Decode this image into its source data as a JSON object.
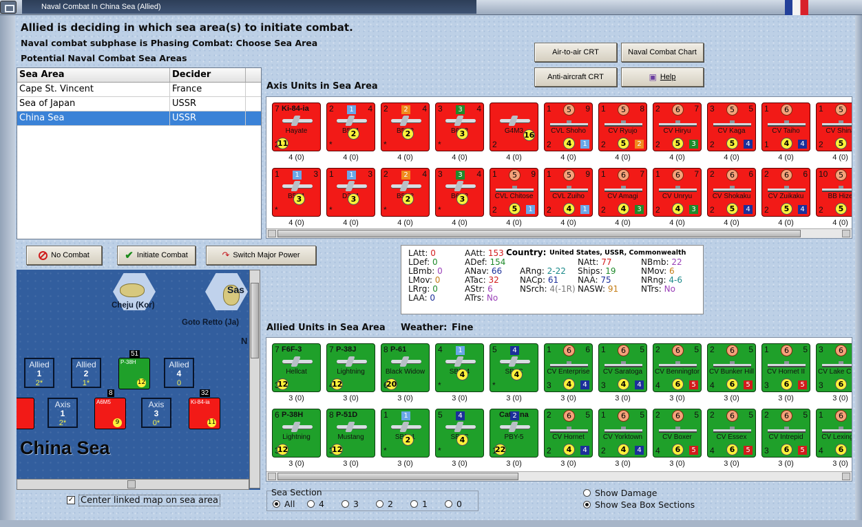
{
  "window": {
    "title": "Naval Combat In China Sea (Allied)"
  },
  "header": {
    "line1": "Allied is deciding in which sea area(s) to initiate combat.",
    "line2": "Naval combat subphase is Phasing Combat: Choose Sea Area",
    "line3": "Potential Naval Combat Sea Areas"
  },
  "sea_table": {
    "headers": [
      "Sea Area",
      "Decider"
    ],
    "rows": [
      {
        "area": "Cape St. Vincent",
        "decider": "France"
      },
      {
        "area": "Sea of Japan",
        "decider": "USSR"
      },
      {
        "area": "China Sea",
        "decider": "USSR"
      }
    ],
    "selected_index": 2
  },
  "chart_buttons": {
    "air_to_air": "Air-to-air CRT",
    "naval_chart": "Naval Combat Chart",
    "anti_aircraft": "Anti-aircraft CRT",
    "help": "Help"
  },
  "action_buttons": {
    "no_combat": "No Combat",
    "initiate": "Initiate Combat",
    "switch": "Switch Major Power"
  },
  "axis_panel": {
    "label": "Axis Units in Sea Area",
    "row1": [
      {
        "type": "plane",
        "top_left": "7",
        "top_right": "",
        "title": "Ki-84-ia",
        "name": "Hayate",
        "bl": "2",
        "val": "11",
        "sq": "",
        "sqc": "",
        "cap": "4 (0)"
      },
      {
        "type": "plane",
        "top_left": "2",
        "top_right": "4",
        "title": "",
        "name": "B5N1",
        "bl": "*",
        "val": "2",
        "sq": "1",
        "sqc": "#6aa7e8",
        "cap": "4 (0)"
      },
      {
        "type": "plane",
        "top_left": "2",
        "top_right": "4",
        "title": "",
        "name": "B5N2",
        "bl": "*",
        "val": "2",
        "sq": "2",
        "sqc": "#f08a1e",
        "cap": "4 (0)"
      },
      {
        "type": "plane",
        "top_left": "3",
        "top_right": "4",
        "title": "",
        "name": "B6N2",
        "bl": "*",
        "val": "3",
        "sq": "3",
        "sqc": "#1e8a2a",
        "cap": "4 (0)"
      },
      {
        "type": "plane",
        "top_left": "",
        "top_right": "",
        "title": "",
        "name": "G4M3",
        "bl": "2",
        "val": "16",
        "sq": "",
        "sqc": "",
        "cap": "4 (0)"
      },
      {
        "type": "ship",
        "top_left": "1",
        "top_right": "9",
        "title": "",
        "name": "CVL Shoho",
        "bl": "2",
        "val": "4",
        "circ": "5",
        "sq": "1",
        "sqc": "#6aa7e8",
        "cap": "4 (0)"
      },
      {
        "type": "ship",
        "top_left": "1",
        "top_right": "8",
        "title": "",
        "name": "CV Ryujo",
        "bl": "2",
        "val": "5",
        "circ": "5",
        "sq": "2",
        "sqc": "#f08a1e",
        "cap": "4 (0)"
      },
      {
        "type": "ship",
        "top_left": "2",
        "top_right": "7",
        "title": "",
        "name": "CV Hiryu",
        "bl": "2",
        "val": "5",
        "circ": "6",
        "sq": "3",
        "sqc": "#1e8a2a",
        "cap": "4 (0)"
      },
      {
        "type": "ship",
        "top_left": "3",
        "top_right": "5",
        "title": "",
        "name": "CV Kaga",
        "bl": "2",
        "val": "5",
        "circ": "5",
        "sq": "4",
        "sqc": "#1b2f9a",
        "cap": "4 (0)"
      },
      {
        "type": "ship",
        "top_left": "1",
        "top_right": "",
        "title": "",
        "name": "CV Taiho",
        "bl": "1",
        "val": "4",
        "circ": "6",
        "sq": "4",
        "sqc": "#1b2f9a",
        "cap": "4 (0)"
      },
      {
        "type": "ship",
        "top_left": "1",
        "top_right": "",
        "title": "",
        "name": "CV Shina",
        "bl": "2",
        "val": "5",
        "circ": "5",
        "sq": "",
        "sqc": "",
        "cap": "4 (0)"
      }
    ],
    "row2": [
      {
        "type": "plane",
        "top_left": "1",
        "top_right": "3",
        "title": "",
        "name": "B5N1",
        "bl": "*",
        "val": "3",
        "sq": "1",
        "sqc": "#6aa7e8",
        "cap": "4 (0)"
      },
      {
        "type": "plane",
        "top_left": "1",
        "top_right": "3",
        "title": "",
        "name": "D3A1",
        "bl": "*",
        "val": "3",
        "sq": "1",
        "sqc": "#6aa7e8",
        "cap": "4 (0)"
      },
      {
        "type": "plane",
        "top_left": "2",
        "top_right": "4",
        "title": "",
        "name": "B5N2",
        "bl": "*",
        "val": "2",
        "sq": "2",
        "sqc": "#f08a1e",
        "cap": "4 (0)"
      },
      {
        "type": "plane",
        "top_left": "3",
        "top_right": "4",
        "title": "",
        "name": "B6N2",
        "bl": "*",
        "val": "3",
        "sq": "3",
        "sqc": "#1e8a2a",
        "cap": "4 (0)"
      },
      {
        "type": "ship",
        "top_left": "1",
        "top_right": "9",
        "title": "",
        "name": "CVL Chitose",
        "bl": "2",
        "val": "5",
        "circ": "5",
        "sq": "1",
        "sqc": "#6aa7e8",
        "cap": "4 (0)"
      },
      {
        "type": "ship",
        "top_left": "1",
        "top_right": "9",
        "title": "",
        "name": "CVL Zuiho",
        "bl": "2",
        "val": "4",
        "circ": "5",
        "sq": "1",
        "sqc": "#6aa7e8",
        "cap": "4 (0)"
      },
      {
        "type": "ship",
        "top_left": "1",
        "top_right": "7",
        "title": "",
        "name": "CV Amagi",
        "bl": "2",
        "val": "4",
        "circ": "6",
        "sq": "3",
        "sqc": "#1e8a2a",
        "cap": "4 (0)"
      },
      {
        "type": "ship",
        "top_left": "1",
        "top_right": "7",
        "title": "",
        "name": "CV Unryu",
        "bl": "2",
        "val": "4",
        "circ": "6",
        "sq": "3",
        "sqc": "#1e8a2a",
        "cap": "4 (0)"
      },
      {
        "type": "ship",
        "top_left": "2",
        "top_right": "6",
        "title": "",
        "name": "CV Shokaku",
        "bl": "2",
        "val": "5",
        "circ": "6",
        "sq": "4",
        "sqc": "#1b2f9a",
        "cap": "4 (0)"
      },
      {
        "type": "ship",
        "top_left": "2",
        "top_right": "6",
        "title": "",
        "name": "CV Zuikaku",
        "bl": "2",
        "val": "5",
        "circ": "6",
        "sq": "4",
        "sqc": "#1b2f9a",
        "cap": "4 (0)"
      },
      {
        "type": "ship",
        "top_left": "10",
        "top_right": "",
        "title": "",
        "name": "BB Hize",
        "bl": "2",
        "val": "5",
        "circ": "5",
        "sq": "",
        "sqc": "",
        "cap": "4 (0)"
      }
    ]
  },
  "allied_panel": {
    "label": "Allied Units in Sea Area",
    "weather_label": "Weather:",
    "weather": "Fine",
    "row1": [
      {
        "type": "plane",
        "top_left": "7",
        "top_right": "",
        "title": "F6F-3",
        "name": "Hellcat",
        "bl": "3",
        "val": "12",
        "sq": "",
        "sqc": "",
        "cap": "3 (0)"
      },
      {
        "type": "plane",
        "top_left": "7",
        "top_right": "",
        "title": "P-38J",
        "name": "Lightning",
        "bl": "4",
        "val": "12",
        "sq": "",
        "sqc": "",
        "cap": "3 (0)"
      },
      {
        "type": "plane",
        "top_left": "8",
        "top_right": "",
        "title": "P-61",
        "name": "Black Widow",
        "bl": "6",
        "val": "20",
        "sq": "",
        "sqc": "",
        "cap": "3 (0)"
      },
      {
        "type": "plane",
        "top_left": "4",
        "top_right": "",
        "title": "",
        "name": "SBD-4",
        "bl": "*",
        "val": "4",
        "sq": "1",
        "sqc": "#6aa7e8",
        "cap": "3 (0)"
      },
      {
        "type": "plane",
        "top_left": "5",
        "top_right": "",
        "title": "",
        "name": "SB2C",
        "bl": "*",
        "val": "4",
        "sq": "4",
        "sqc": "#1b2f9a",
        "cap": "3 (0)"
      },
      {
        "type": "ship",
        "top_left": "1",
        "top_right": "6",
        "title": "",
        "name": "CV Enterprise",
        "bl": "3",
        "val": "4",
        "circ": "6",
        "sq": "4",
        "sqc": "#1b2f9a",
        "cap": "3 (0)"
      },
      {
        "type": "ship",
        "top_left": "1",
        "top_right": "5",
        "title": "",
        "name": "CV Saratoga",
        "bl": "3",
        "val": "4",
        "circ": "6",
        "sq": "4",
        "sqc": "#1b2f9a",
        "cap": "3 (0)"
      },
      {
        "type": "ship",
        "top_left": "2",
        "top_right": "5",
        "title": "",
        "name": "CV Bennington",
        "bl": "4",
        "val": "6",
        "circ": "6",
        "sq": "5",
        "sqc": "#d21b1b",
        "cap": "3 (0)"
      },
      {
        "type": "ship",
        "top_left": "2",
        "top_right": "5",
        "title": "",
        "name": "CV Bunker Hill",
        "bl": "4",
        "val": "6",
        "circ": "6",
        "sq": "5",
        "sqc": "#d21b1b",
        "cap": "3 (0)"
      },
      {
        "type": "ship",
        "top_left": "1",
        "top_right": "5",
        "title": "",
        "name": "CV Hornet II",
        "bl": "3",
        "val": "6",
        "circ": "6",
        "sq": "5",
        "sqc": "#d21b1b",
        "cap": "3 (0)"
      },
      {
        "type": "ship",
        "top_left": "3",
        "top_right": "",
        "title": "",
        "name": "CV Lake Champlain",
        "bl": "3",
        "val": "6",
        "circ": "6",
        "sq": "",
        "sqc": "",
        "cap": "3 (0)"
      }
    ],
    "row2": [
      {
        "type": "plane",
        "top_left": "6",
        "top_right": "",
        "title": "P-38H",
        "name": "Lightning",
        "bl": "3",
        "val": "12",
        "sq": "",
        "sqc": "",
        "cap": "3 (0)"
      },
      {
        "type": "plane",
        "top_left": "8",
        "top_right": "",
        "title": "P-51D",
        "name": "Mustang",
        "bl": "3",
        "val": "12",
        "sq": "",
        "sqc": "",
        "cap": "3 (0)"
      },
      {
        "type": "plane",
        "top_left": "1",
        "top_right": "",
        "title": "",
        "name": "SBD-1",
        "bl": "*",
        "val": "2",
        "sq": "1",
        "sqc": "#6aa7e8",
        "cap": "3 (0)"
      },
      {
        "type": "plane",
        "top_left": "5",
        "top_right": "",
        "title": "",
        "name": "SB2C",
        "bl": "*",
        "val": "4",
        "sq": "4",
        "sqc": "#1b2f9a",
        "cap": "3 (0)"
      },
      {
        "type": "plane",
        "top_left": "",
        "top_right": "",
        "title": "Catalina",
        "name": "PBY-5",
        "bl": "1",
        "val": "22",
        "sq": "2",
        "sqc": "#1b2f9a",
        "cap": "3 (0)"
      },
      {
        "type": "ship",
        "top_left": "2",
        "top_right": "5",
        "title": "",
        "name": "CV Hornet",
        "bl": "2",
        "val": "4",
        "circ": "6",
        "sq": "4",
        "sqc": "#1b2f9a",
        "cap": "3 (0)"
      },
      {
        "type": "ship",
        "top_left": "1",
        "top_right": "5",
        "title": "",
        "name": "CV Yorktown",
        "bl": "2",
        "val": "4",
        "circ": "6",
        "sq": "4",
        "sqc": "#1b2f9a",
        "cap": "3 (0)"
      },
      {
        "type": "ship",
        "top_left": "2",
        "top_right": "5",
        "title": "",
        "name": "CV Boxer",
        "bl": "4",
        "val": "6",
        "circ": "6",
        "sq": "5",
        "sqc": "#d21b1b",
        "cap": "3 (0)"
      },
      {
        "type": "ship",
        "top_left": "2",
        "top_right": "5",
        "title": "",
        "name": "CV Essex",
        "bl": "4",
        "val": "6",
        "circ": "6",
        "sq": "5",
        "sqc": "#d21b1b",
        "cap": "3 (0)"
      },
      {
        "type": "ship",
        "top_left": "2",
        "top_right": "5",
        "title": "",
        "name": "CV Intrepid",
        "bl": "3",
        "val": "6",
        "circ": "6",
        "sq": "5",
        "sqc": "#d21b1b",
        "cap": "3 (0)"
      },
      {
        "type": "ship",
        "top_left": "1",
        "top_right": "",
        "title": "",
        "name": "CV Lexingto",
        "bl": "4",
        "val": "6",
        "circ": "6",
        "sq": "",
        "sqc": "",
        "cap": "3 (0)"
      }
    ]
  },
  "stats": {
    "country_label": "Country:",
    "country": "United States, USSR, Commonwealth",
    "items": [
      {
        "k": "LAtt:",
        "v": "0",
        "c": "#d21b1b"
      },
      {
        "k": "LDef:",
        "v": "0",
        "c": "#1e8a2a"
      },
      {
        "k": "LBmb:",
        "v": "0",
        "c": "#9a3fb8"
      },
      {
        "k": "LMov:",
        "v": "0",
        "c": "#c47d16"
      },
      {
        "k": "LRrg:",
        "v": "0",
        "c": "#1e8a2a"
      },
      {
        "k": "LAA:",
        "v": "0",
        "c": "#1b2f9a"
      },
      {
        "k": "AAtt:",
        "v": "153",
        "c": "#d21b1b"
      },
      {
        "k": "ADef:",
        "v": "154",
        "c": "#1e8a2a"
      },
      {
        "k": "ANav:",
        "v": "66",
        "c": "#1b2f9a"
      },
      {
        "k": "ATac:",
        "v": "32",
        "c": "#d21b1b"
      },
      {
        "k": "AStr:",
        "v": "6",
        "c": "#9a3fb8"
      },
      {
        "k": "ATrs:",
        "v": "No",
        "c": "#9a3fb8"
      },
      {
        "k": "ARng:",
        "v": "2-22",
        "c": "#1b8a8a"
      },
      {
        "k": "NACp:",
        "v": "61",
        "c": "#1b2f9a"
      },
      {
        "k": "NSrch:",
        "v": "4(-1R)",
        "c": "#777"
      },
      {
        "k": "NAtt:",
        "v": "77",
        "c": "#d21b1b"
      },
      {
        "k": "Ships:",
        "v": "19",
        "c": "#1e8a2a"
      },
      {
        "k": "NAA:",
        "v": "75",
        "c": "#1b2f9a"
      },
      {
        "k": "NASW:",
        "v": "91",
        "c": "#c47d16"
      },
      {
        "k": "NBmb:",
        "v": "22",
        "c": "#9a3fb8"
      },
      {
        "k": "NMov:",
        "v": "6",
        "c": "#c47d16"
      },
      {
        "k": "NRng:",
        "v": "4-6",
        "c": "#1b8a8a"
      },
      {
        "k": "NTrs:",
        "v": "No",
        "c": "#9a3fb8"
      }
    ]
  },
  "map": {
    "places": [
      "Cheju (Kor)",
      "Goto Retto (Ja)",
      "Sas",
      "N"
    ],
    "sea_name": "China Sea",
    "allied_boxes": [
      {
        "title": "Allied",
        "num": "1",
        "count": "2*"
      },
      {
        "title": "Allied",
        "num": "2",
        "count": "1*"
      },
      {
        "title": "Allied",
        "num": "4",
        "count": "0"
      }
    ],
    "axis_boxes": [
      {
        "title": "Axis",
        "num": "1",
        "count": "2*"
      },
      {
        "title": "Axis",
        "num": "3",
        "count": "0*"
      }
    ],
    "stack_numbers": [
      "51",
      "8",
      "32"
    ],
    "units": [
      {
        "label": "P-38H",
        "v": "12"
      },
      {
        "label": "A6M5",
        "v": "9"
      },
      {
        "label": "Ki-84-ia",
        "v": "11"
      }
    ]
  },
  "center_link": {
    "label": "Center linked map on sea area",
    "checked": true
  },
  "sea_section": {
    "label": "Sea Section",
    "options": [
      "All",
      "4",
      "3",
      "2",
      "1",
      "0"
    ],
    "selected": "All"
  },
  "view_options": {
    "options": [
      "Show Damage",
      "Show Sea Box Sections"
    ],
    "selected": "Show Sea Box Sections"
  }
}
